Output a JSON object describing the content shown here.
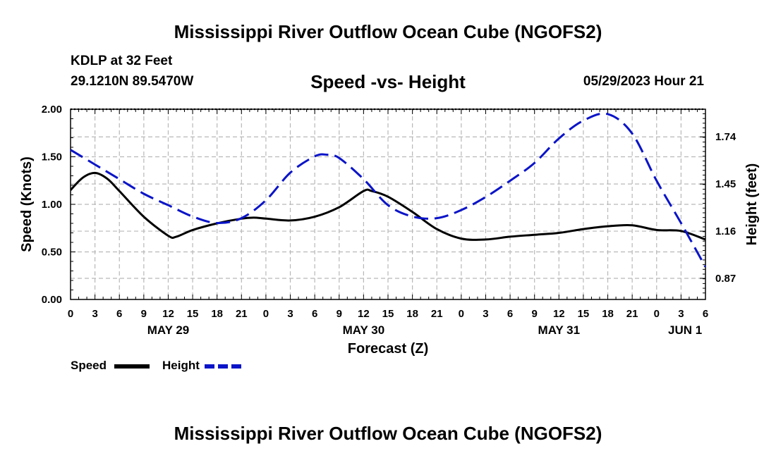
{
  "header": {
    "title": "Mississippi River Outflow Ocean Cube (NGOFS2)",
    "station": "KDLP at 32 Feet",
    "coords": "29.1210N  89.5470W",
    "subtitle": "Speed -vs- Height",
    "datetime": "05/29/2023 Hour 21"
  },
  "footer": {
    "title": "Mississippi River Outflow Ocean Cube (NGOFS2)"
  },
  "legend": {
    "speed": "Speed",
    "height": "Height"
  },
  "colors": {
    "speed": "#000000",
    "height": "#0a14c8",
    "grid": "#b8b8b8"
  },
  "chart_data": {
    "type": "line",
    "title": "Speed -vs- Height",
    "xlabel": "Forecast (Z)",
    "ylabel": "Speed (Knots)",
    "y2label": "Height (feet)",
    "xlim": [
      0,
      78
    ],
    "ylim": [
      0,
      2.0
    ],
    "y2lim": [
      0.74,
      1.91
    ],
    "x_ticks": [
      0,
      3,
      6,
      9,
      12,
      15,
      18,
      21,
      24,
      27,
      30,
      33,
      36,
      39,
      42,
      45,
      48,
      51,
      54,
      57,
      60,
      63,
      66,
      69,
      72,
      75,
      78
    ],
    "x_tick_labels": [
      "0",
      "3",
      "6",
      "9",
      "12",
      "15",
      "18",
      "21",
      "0",
      "3",
      "6",
      "9",
      "12",
      "15",
      "18",
      "21",
      "0",
      "3",
      "6",
      "9",
      "12",
      "15",
      "18",
      "21",
      "0",
      "3",
      "6"
    ],
    "date_labels": [
      {
        "x": 12,
        "label": "MAY 29"
      },
      {
        "x": 36,
        "label": "MAY 30"
      },
      {
        "x": 60,
        "label": "MAY 31"
      },
      {
        "x": 75.5,
        "label": "JUN 1"
      }
    ],
    "y_ticks": [
      0.0,
      0.5,
      1.0,
      1.5,
      2.0
    ],
    "y_tick_labels": [
      "0.00",
      "0.50",
      "1.00",
      "1.50",
      "2.00"
    ],
    "y2_ticks": [
      0.87,
      1.16,
      1.45,
      1.74
    ],
    "y2_tick_labels": [
      "0.87",
      "1.16",
      "1.45",
      "1.74"
    ],
    "series": [
      {
        "name": "Speed",
        "axis": "left",
        "style": "solid",
        "x": [
          0,
          1.5,
          3,
          4.5,
          6,
          9,
          12,
          13,
          15,
          18,
          21,
          22.5,
          24,
          27,
          30,
          33,
          36,
          37,
          39,
          42,
          45,
          48,
          51,
          54,
          57,
          60,
          63,
          66,
          69,
          72,
          75,
          78
        ],
        "values": [
          1.15,
          1.28,
          1.33,
          1.27,
          1.14,
          0.87,
          0.67,
          0.66,
          0.73,
          0.8,
          0.85,
          0.86,
          0.85,
          0.83,
          0.87,
          0.97,
          1.14,
          1.14,
          1.08,
          0.92,
          0.74,
          0.64,
          0.63,
          0.66,
          0.68,
          0.7,
          0.74,
          0.77,
          0.78,
          0.73,
          0.72,
          0.63
        ]
      },
      {
        "name": "Height",
        "axis": "right",
        "style": "dashed",
        "x": [
          0,
          3,
          6,
          9,
          12,
          15,
          18,
          21,
          24,
          27,
          30,
          31.5,
          33,
          36,
          39,
          42,
          45,
          48,
          51,
          54,
          57,
          60,
          63,
          66,
          69,
          72,
          75,
          78
        ],
        "values": [
          1.66,
          1.57,
          1.48,
          1.39,
          1.32,
          1.25,
          1.21,
          1.24,
          1.35,
          1.52,
          1.62,
          1.63,
          1.61,
          1.48,
          1.32,
          1.25,
          1.24,
          1.29,
          1.37,
          1.47,
          1.58,
          1.73,
          1.84,
          1.88,
          1.76,
          1.47,
          1.21,
          0.94
        ]
      }
    ]
  }
}
